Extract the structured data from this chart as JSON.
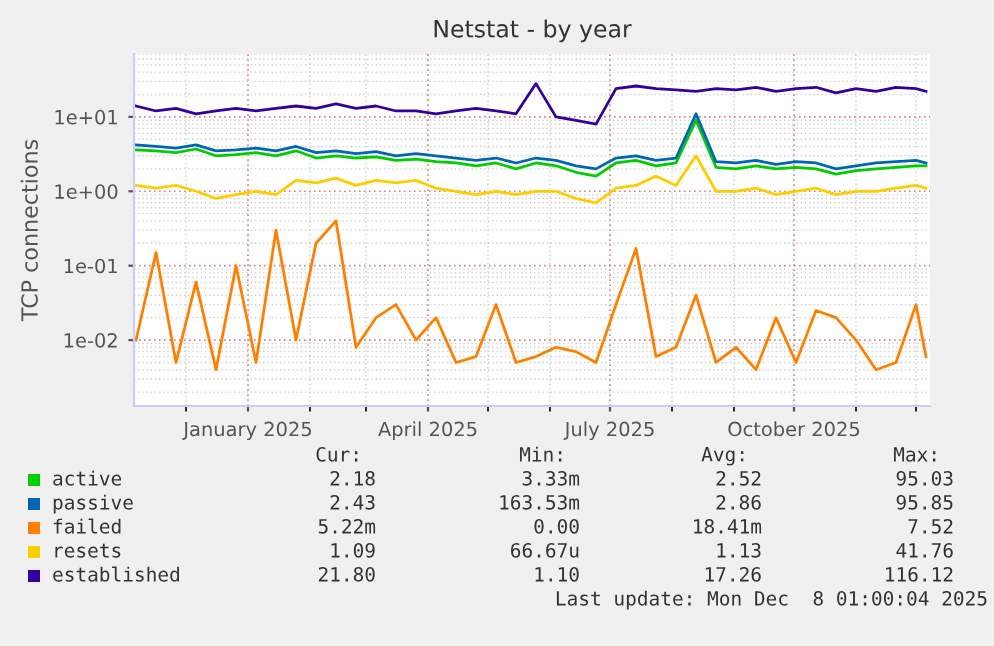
{
  "chart_data": {
    "type": "line",
    "title": "Netstat - by year",
    "ylabel": "TCP connections",
    "x": [
      "2024-11-06",
      "2024-11-16",
      "2024-11-26",
      "2024-12-06",
      "2024-12-16",
      "2024-12-26",
      "2025-01-05",
      "2025-01-15",
      "2025-01-25",
      "2025-02-04",
      "2025-02-14",
      "2025-02-24",
      "2025-03-06",
      "2025-03-16",
      "2025-03-26",
      "2025-04-05",
      "2025-04-15",
      "2025-04-25",
      "2025-05-05",
      "2025-05-15",
      "2025-05-25",
      "2025-06-04",
      "2025-06-14",
      "2025-06-24",
      "2025-07-04",
      "2025-07-14",
      "2025-07-24",
      "2025-08-03",
      "2025-08-13",
      "2025-08-23",
      "2025-09-02",
      "2025-09-12",
      "2025-09-22",
      "2025-10-02",
      "2025-10-12",
      "2025-10-22",
      "2025-11-01",
      "2025-11-11",
      "2025-11-21",
      "2025-12-01",
      "2025-12-06"
    ],
    "series": [
      {
        "name": "active",
        "color": "#00cc00",
        "values": [
          3.6,
          3.5,
          3.3,
          3.7,
          3.0,
          3.1,
          3.3,
          3.0,
          3.5,
          2.8,
          3.0,
          2.8,
          2.9,
          2.6,
          2.7,
          2.5,
          2.4,
          2.2,
          2.4,
          2.0,
          2.4,
          2.2,
          1.8,
          1.6,
          2.4,
          2.6,
          2.2,
          2.4,
          9,
          2.1,
          2.0,
          2.2,
          2.0,
          2.1,
          2.0,
          1.7,
          1.9,
          2.0,
          2.1,
          2.2,
          2.2
        ]
      },
      {
        "name": "passive",
        "color": "#0066b3",
        "values": [
          4.2,
          4.0,
          3.8,
          4.2,
          3.5,
          3.6,
          3.8,
          3.5,
          4.0,
          3.3,
          3.5,
          3.2,
          3.4,
          3.0,
          3.2,
          3.0,
          2.8,
          2.6,
          2.8,
          2.4,
          2.8,
          2.6,
          2.2,
          2.0,
          2.8,
          3.0,
          2.6,
          2.8,
          11,
          2.5,
          2.4,
          2.6,
          2.3,
          2.5,
          2.4,
          2.0,
          2.2,
          2.4,
          2.5,
          2.6,
          2.4
        ]
      },
      {
        "name": "failed",
        "color": "#ff8000",
        "values": [
          0.01,
          0.15,
          0.005,
          0.06,
          0.004,
          0.1,
          0.005,
          0.3,
          0.01,
          0.2,
          0.4,
          0.008,
          0.02,
          0.03,
          0.01,
          0.02,
          0.005,
          0.006,
          0.03,
          0.005,
          0.006,
          0.008,
          0.007,
          0.005,
          0.03,
          0.17,
          0.006,
          0.008,
          0.04,
          0.005,
          0.008,
          0.004,
          0.02,
          0.005,
          0.025,
          0.02,
          0.01,
          0.004,
          0.005,
          0.03,
          0.006
        ]
      },
      {
        "name": "resets",
        "color": "#ffcc00",
        "values": [
          1.2,
          1.1,
          1.2,
          1.0,
          0.8,
          0.9,
          1.0,
          0.9,
          1.4,
          1.3,
          1.5,
          1.2,
          1.4,
          1.3,
          1.4,
          1.1,
          1.0,
          0.9,
          1.0,
          0.9,
          1.0,
          1.0,
          0.8,
          0.7,
          1.1,
          1.2,
          1.6,
          1.2,
          3.0,
          1.0,
          1.0,
          1.1,
          0.9,
          1.0,
          1.1,
          0.9,
          1.0,
          1.0,
          1.1,
          1.2,
          1.1
        ]
      },
      {
        "name": "established",
        "color": "#330099",
        "values": [
          14,
          12,
          13,
          11,
          12,
          13,
          12,
          13,
          14,
          13,
          15,
          13,
          14,
          12,
          12,
          11,
          12,
          13,
          12,
          11,
          28,
          10,
          9,
          8,
          24,
          26,
          24,
          23,
          22,
          24,
          23,
          25,
          22,
          24,
          25,
          21,
          24,
          22,
          25,
          24,
          22
        ]
      }
    ],
    "log": "y",
    "xlim": [
      "2024-11-05",
      "2025-12-08"
    ],
    "ylim": [
      0.0013,
      70
    ],
    "xticks": [
      {
        "value": "2025-01-01",
        "label": "January 2025"
      },
      {
        "value": "2025-04-01",
        "label": "April 2025"
      },
      {
        "value": "2025-07-01",
        "label": "July 2025"
      },
      {
        "value": "2025-10-01",
        "label": "October 2025"
      }
    ],
    "yticks": [
      {
        "value": 0.01,
        "label": "1e-02"
      },
      {
        "value": 0.1,
        "label": "1e-01"
      },
      {
        "value": 1,
        "label": "1e+00"
      },
      {
        "value": 10,
        "label": "1e+01"
      }
    ],
    "grid": true,
    "legend": "bottom",
    "annotations": [
      "Cur: Min: Avg: Max:",
      "2.18 3.33m 2.52 95.03",
      "2.43 163.53m 2.86 95.85",
      "5.22m 0.00 18.41m 7.52",
      "1.09 66.67u 1.13 41.76",
      "21.80 1.10 17.26 116.12",
      "Last update: Mon Dec  8 01:00:04 2025"
    ]
  }
}
